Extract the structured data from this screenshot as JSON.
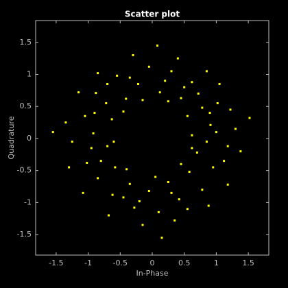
{
  "chart_data": {
    "type": "scatter",
    "title": "Scatter plot",
    "xlabel": "In-Phase",
    "ylabel": "Quadrature",
    "color": "#ffff00",
    "grid": false,
    "xlim": [
      -1.82,
      1.82
    ],
    "ylim": [
      -1.82,
      1.84
    ],
    "xticks": [
      -1.5,
      -1,
      -0.5,
      0,
      0.5,
      1,
      1.5
    ],
    "yticks": [
      -1.5,
      -1,
      -0.5,
      0,
      0.5,
      1,
      1.5
    ],
    "x": [
      0.62,
      0.91,
      1.18,
      0.78,
      1.02,
      0.45,
      0.62,
      0.3,
      0.12,
      -0.05,
      -0.22,
      -0.41,
      -0.55,
      -0.72,
      -0.88,
      -0.63,
      -1.05,
      -0.92,
      -1.25,
      -0.7,
      -1.02,
      -0.85,
      -0.58,
      -0.62,
      -0.35,
      -0.28,
      -0.05,
      0.1,
      0.25,
      0.42,
      0.58,
      0.78,
      0.95,
      0.7,
      1.12,
      1.3,
      0.85,
      0.55,
      0.25,
      -0.15,
      -0.45,
      -0.6,
      -0.4,
      0.05,
      0.45,
      0.62,
      1.05,
      0.85,
      0.4,
      -0.3,
      -0.85,
      -1.15,
      -1.35,
      -1.3,
      -1.08,
      -0.68,
      -0.15,
      0.35,
      0.88,
      1.18,
      1.38,
      1.22,
      0.08,
      0.15,
      -1.55,
      1.52,
      0.2,
      -0.7,
      -0.95,
      0.72,
      -0.45,
      0.55,
      1.0,
      -0.2,
      0.9,
      -0.9,
      0.3,
      -0.8,
      0.5,
      -0.35
    ],
    "values": [
      0.05,
      0.21,
      -0.12,
      0.48,
      0.55,
      0.63,
      0.88,
      1.05,
      0.72,
      1.12,
      0.85,
      0.62,
      0.98,
      0.55,
      0.71,
      0.3,
      0.35,
      0.08,
      -0.05,
      -0.12,
      -0.38,
      -0.62,
      -0.45,
      -0.88,
      -0.71,
      -1.08,
      -0.82,
      -1.15,
      -0.68,
      -0.95,
      -0.52,
      -0.8,
      -0.45,
      -0.22,
      -0.35,
      0.15,
      -0.05,
      0.35,
      0.58,
      0.6,
      0.42,
      -0.05,
      -0.48,
      -0.6,
      -0.4,
      -0.15,
      0.85,
      1.05,
      1.25,
      1.3,
      1.02,
      0.72,
      0.25,
      -0.45,
      -0.85,
      -1.2,
      -1.35,
      -1.28,
      -1.05,
      -0.72,
      -0.2,
      0.45,
      1.45,
      -1.55,
      0.1,
      0.32,
      0.9,
      0.85,
      -0.15,
      0.7,
      -0.92,
      -1.1,
      0.1,
      -0.98,
      0.4,
      0.4,
      -0.85,
      -0.35,
      0.8,
      0.95
    ]
  }
}
